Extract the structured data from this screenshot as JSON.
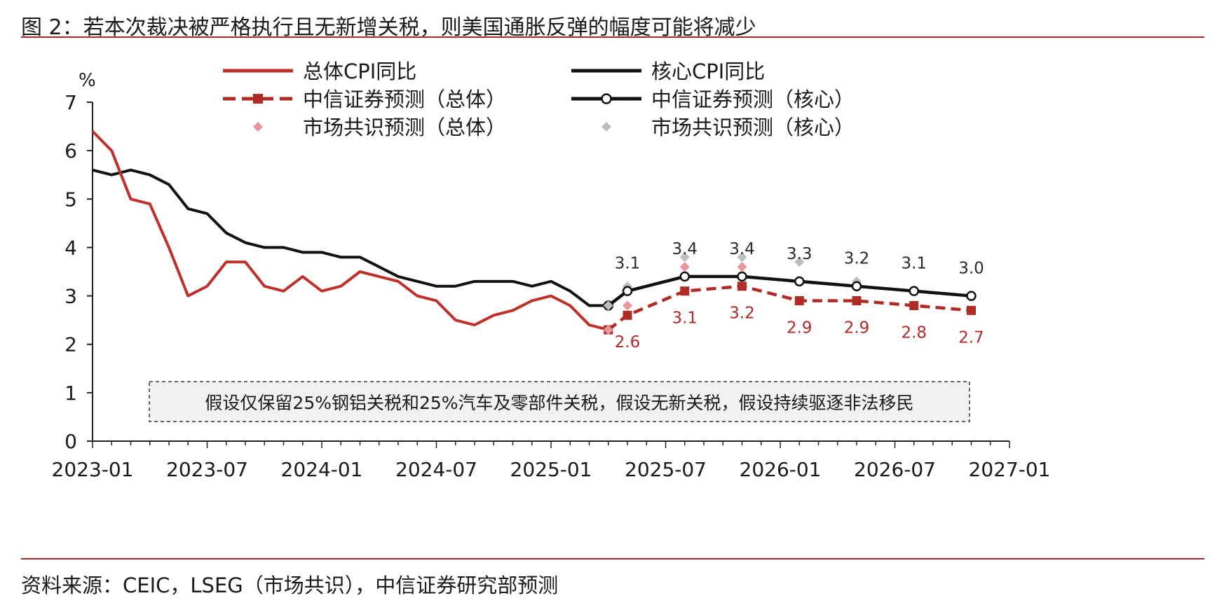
{
  "figure": {
    "title": "图 2：若本次裁决被严格执行且无新增关税，则美国通胀反弹的幅度可能将减少",
    "source": "资料来源：CEIC，LSEG（市场共识），中信证券研究部预测"
  },
  "chart_data": {
    "type": "line",
    "ylabel": "%",
    "ylim": [
      0,
      7
    ],
    "yticks": [
      "0",
      "1",
      "2",
      "3",
      "4",
      "5",
      "6",
      "7"
    ],
    "xlim": [
      "2023-01",
      "2027-01"
    ],
    "xticks": [
      "2023-01",
      "2023-07",
      "2024-01",
      "2024-07",
      "2025-01",
      "2025-07",
      "2026-01",
      "2026-07",
      "2027-01"
    ],
    "grid": false,
    "legend_position": "top",
    "annotation_box": "假设仅保留25%钢铝关税和25%汽车及零部件关税，假设无新关税，假设持续驱逐非法移民",
    "series": [
      {
        "name": "总体CPI同比",
        "style": "solid",
        "color": "#c0302a",
        "x": [
          "2023-01",
          "2023-02",
          "2023-03",
          "2023-04",
          "2023-05",
          "2023-06",
          "2023-07",
          "2023-08",
          "2023-09",
          "2023-10",
          "2023-11",
          "2023-12",
          "2024-01",
          "2024-02",
          "2024-03",
          "2024-04",
          "2024-05",
          "2024-06",
          "2024-07",
          "2024-08",
          "2024-09",
          "2024-10",
          "2024-11",
          "2024-12",
          "2025-01",
          "2025-02",
          "2025-03",
          "2025-04"
        ],
        "values": [
          6.4,
          6.0,
          5.0,
          4.9,
          4.0,
          3.0,
          3.2,
          3.7,
          3.7,
          3.2,
          3.1,
          3.4,
          3.1,
          3.2,
          3.5,
          3.4,
          3.3,
          3.0,
          2.9,
          2.5,
          2.4,
          2.6,
          2.7,
          2.9,
          3.0,
          2.8,
          2.4,
          2.3
        ]
      },
      {
        "name": "核心CPI同比",
        "style": "solid",
        "color": "#111111",
        "x": [
          "2023-01",
          "2023-02",
          "2023-03",
          "2023-04",
          "2023-05",
          "2023-06",
          "2023-07",
          "2023-08",
          "2023-09",
          "2023-10",
          "2023-11",
          "2023-12",
          "2024-01",
          "2024-02",
          "2024-03",
          "2024-04",
          "2024-05",
          "2024-06",
          "2024-07",
          "2024-08",
          "2024-09",
          "2024-10",
          "2024-11",
          "2024-12",
          "2025-01",
          "2025-02",
          "2025-03",
          "2025-04"
        ],
        "values": [
          5.6,
          5.5,
          5.6,
          5.5,
          5.3,
          4.8,
          4.7,
          4.3,
          4.1,
          4.0,
          4.0,
          3.9,
          3.9,
          3.8,
          3.8,
          3.6,
          3.4,
          3.3,
          3.2,
          3.2,
          3.3,
          3.3,
          3.3,
          3.2,
          3.3,
          3.1,
          2.8,
          2.8
        ]
      },
      {
        "name": "中信证券预测（总体）",
        "style": "dashed-square",
        "color": "#b02a26",
        "x": [
          "2025-04",
          "2025-05",
          "2025-08",
          "2025-11",
          "2026-02",
          "2026-05",
          "2026-08",
          "2026-11"
        ],
        "values": [
          2.3,
          2.6,
          3.1,
          3.2,
          2.9,
          2.9,
          2.8,
          2.7
        ],
        "labels": [
          "",
          "2.6",
          "3.1",
          "3.2",
          "2.9",
          "2.9",
          "2.8",
          "2.7"
        ]
      },
      {
        "name": "中信证券预测（核心）",
        "style": "solid-circle",
        "color": "#111111",
        "x": [
          "2025-04",
          "2025-05",
          "2025-08",
          "2025-11",
          "2026-02",
          "2026-05",
          "2026-08",
          "2026-11"
        ],
        "values": [
          2.8,
          3.1,
          3.4,
          3.4,
          3.3,
          3.2,
          3.1,
          3.0
        ],
        "labels": [
          "",
          "3.1",
          "3.4",
          "3.4",
          "3.3",
          "3.2",
          "3.1",
          "3.0"
        ]
      },
      {
        "name": "市场共识预测（总体）",
        "style": "diamond",
        "color": "#e8979b",
        "x": [
          "2025-04",
          "2025-05",
          "2025-08",
          "2025-11",
          "2026-02",
          "2026-05"
        ],
        "values": [
          2.3,
          2.8,
          3.6,
          3.6,
          3.3,
          3.2
        ]
      },
      {
        "name": "市场共识预测（核心）",
        "style": "diamond",
        "color": "#bdbdbd",
        "x": [
          "2025-04",
          "2025-05",
          "2025-08",
          "2025-11",
          "2026-02",
          "2026-05"
        ],
        "values": [
          2.8,
          3.2,
          3.8,
          3.8,
          3.7,
          3.3
        ]
      }
    ]
  }
}
